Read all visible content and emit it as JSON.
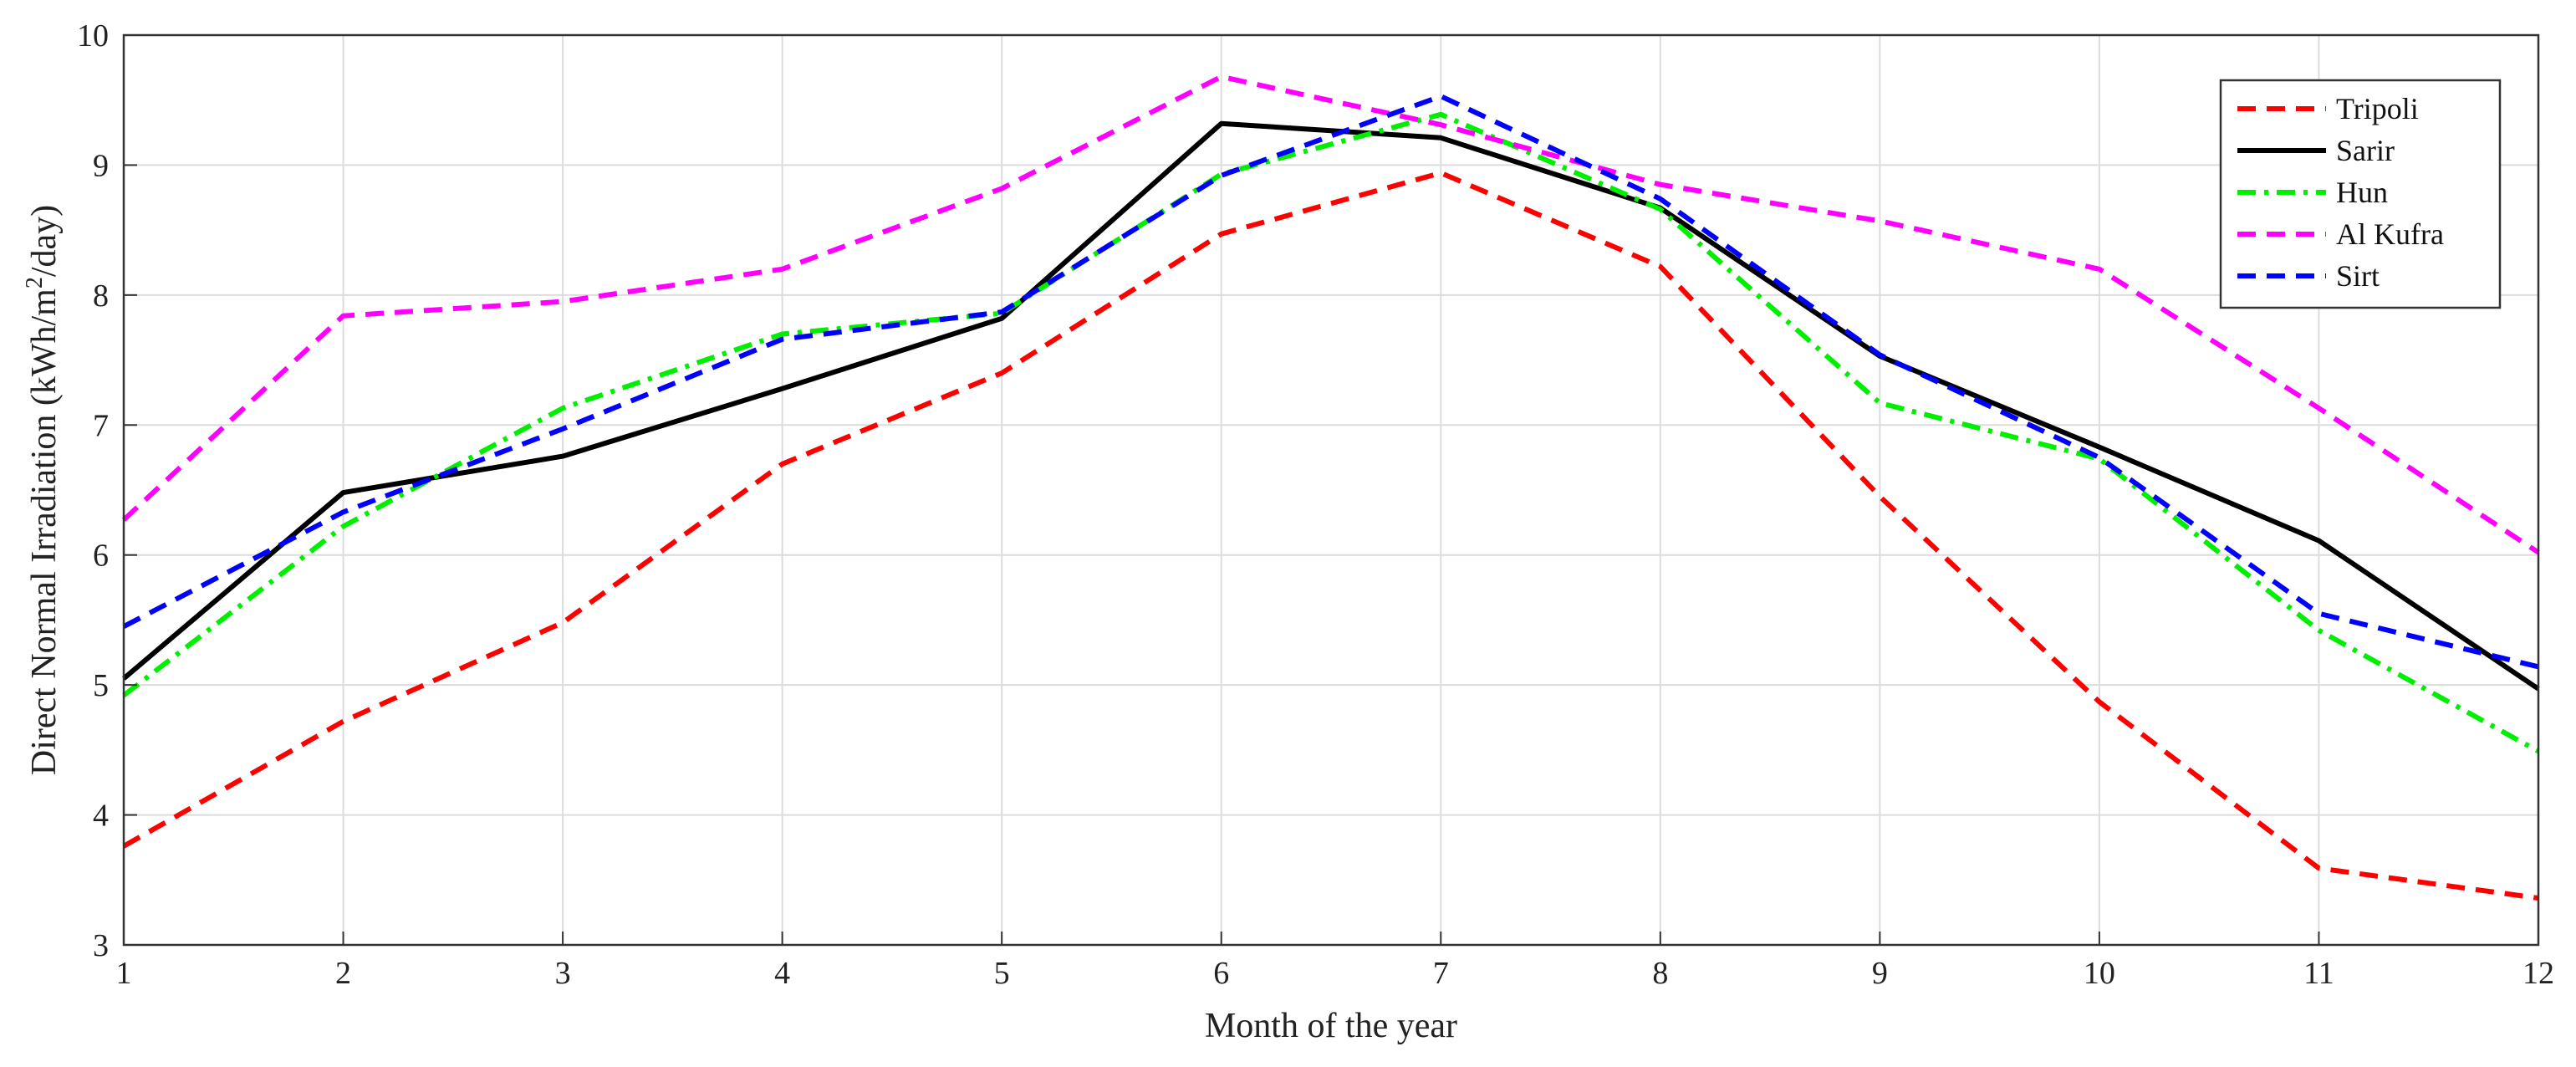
{
  "chart_data": {
    "type": "line",
    "title": "",
    "xlabel": "Month of the year",
    "ylabel_main": "Direct Normal Irradiation (kWh/m",
    "ylabel_sup": "2",
    "ylabel_tail": "/day)",
    "x": [
      1,
      2,
      3,
      4,
      5,
      6,
      7,
      8,
      9,
      10,
      11,
      12
    ],
    "xlim": [
      1,
      12
    ],
    "ylim": [
      3,
      10
    ],
    "xticks": [
      "1",
      "2",
      "3",
      "4",
      "5",
      "6",
      "7",
      "8",
      "9",
      "10",
      "11",
      "12"
    ],
    "yticks": [
      "3",
      "4",
      "5",
      "6",
      "7",
      "8",
      "9",
      "10"
    ],
    "grid": true,
    "legend_position": "top-right",
    "series": [
      {
        "name": "Tripoli",
        "color": "#ff0000",
        "style": "dashed",
        "values": [
          3.76,
          4.72,
          5.48,
          6.7,
          7.4,
          8.47,
          8.94,
          8.22,
          6.45,
          4.87,
          3.59,
          3.36
        ]
      },
      {
        "name": "Sarir",
        "color": "#000000",
        "style": "solid",
        "values": [
          5.05,
          6.48,
          6.76,
          7.28,
          7.82,
          9.32,
          9.21,
          8.67,
          7.53,
          6.83,
          6.11,
          4.97
        ]
      },
      {
        "name": "Hun",
        "color": "#00ee00",
        "style": "dashdot",
        "values": [
          4.92,
          6.22,
          7.13,
          7.7,
          7.86,
          8.93,
          9.39,
          8.66,
          7.17,
          6.74,
          5.42,
          4.49
        ]
      },
      {
        "name": "Al Kufra",
        "color": "#ff00ff",
        "style": "dashed",
        "values": [
          6.27,
          7.84,
          7.95,
          8.2,
          8.82,
          9.68,
          9.31,
          8.85,
          8.57,
          8.2,
          7.13,
          6.02
        ]
      },
      {
        "name": "Sirt",
        "color": "#0000ff",
        "style": "dashed",
        "values": [
          5.45,
          6.33,
          6.97,
          7.66,
          7.87,
          8.92,
          9.53,
          8.74,
          7.54,
          6.75,
          5.55,
          5.14
        ]
      }
    ]
  }
}
